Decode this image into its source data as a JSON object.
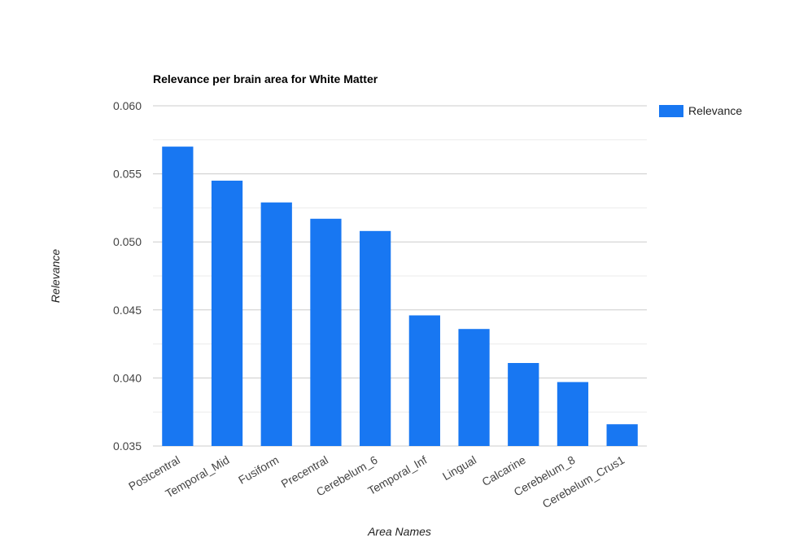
{
  "chart_data": {
    "type": "bar",
    "title": "Relevance per brain area for White Matter",
    "xlabel": "Area Names",
    "ylabel": "Relevance",
    "categories": [
      "Postcentral",
      "Temporal_Mid",
      "Fusiform",
      "Precentral",
      "Cerebelum_6",
      "Temporal_Inf",
      "Lingual",
      "Calcarine",
      "Cerebelum_8",
      "Cerebelum_Crus1"
    ],
    "series": [
      {
        "name": "Relevance",
        "color": "#1877f2",
        "values": [
          0.057,
          0.0545,
          0.0529,
          0.0517,
          0.0508,
          0.0446,
          0.0436,
          0.0411,
          0.0397,
          0.0366
        ]
      }
    ],
    "ylim": [
      0.035,
      0.06
    ],
    "yticks": [
      "0.035",
      "0.040",
      "0.045",
      "0.050",
      "0.055",
      "0.060"
    ],
    "grid": true,
    "legend": "top-right"
  }
}
